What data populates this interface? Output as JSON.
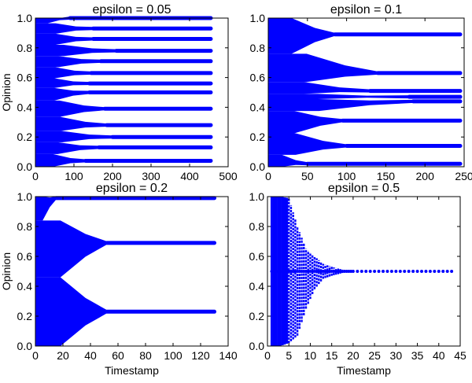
{
  "chart_data": [
    {
      "type": "scatter",
      "title": "epsilon = 0.05",
      "xlabel": "",
      "ylabel": "Opinion",
      "xlim": [
        0,
        500
      ],
      "ylim": [
        0,
        1
      ],
      "xticks": [
        "0",
        "100",
        "200",
        "300",
        "400",
        "500"
      ],
      "yticks": [
        "0.0",
        "0.2",
        "0.4",
        "0.6",
        "0.8",
        "1.0"
      ],
      "x_end": 455,
      "color": "#0000ff",
      "clusters": [
        {
          "opinion": 0.04,
          "converged_at": 130
        },
        {
          "opinion": 0.13,
          "converged_at": 165
        },
        {
          "opinion": 0.2,
          "converged_at": 200
        },
        {
          "opinion": 0.28,
          "converged_at": 185
        },
        {
          "opinion": 0.39,
          "converged_at": 180
        },
        {
          "opinion": 0.5,
          "converged_at": 140
        },
        {
          "opinion": 0.56,
          "converged_at": 140
        },
        {
          "opinion": 0.63,
          "converged_at": 145
        },
        {
          "opinion": 0.71,
          "converged_at": 170
        },
        {
          "opinion": 0.78,
          "converged_at": 210
        },
        {
          "opinion": 0.86,
          "converged_at": 150
        },
        {
          "opinion": 0.93,
          "converged_at": 150
        },
        {
          "opinion": 1.0,
          "converged_at": 90
        }
      ]
    },
    {
      "type": "scatter",
      "title": "epsilon = 0.1",
      "xlabel": "",
      "ylabel": "",
      "xlim": [
        0,
        250
      ],
      "ylim": [
        0,
        1
      ],
      "xticks": [
        "0",
        "50",
        "100",
        "150",
        "200",
        "250"
      ],
      "yticks": [
        "0.0",
        "0.2",
        "0.4",
        "0.6",
        "0.8",
        "1.0"
      ],
      "x_end": 245,
      "color": "#0000ff",
      "clusters": [
        {
          "opinion": 0.02,
          "converged_at": 50
        },
        {
          "opinion": 0.14,
          "converged_at": 100
        },
        {
          "opinion": 0.31,
          "converged_at": 95
        },
        {
          "opinion": 0.44,
          "converged_at": 185
        },
        {
          "opinion": 0.47,
          "converged_at": 180
        },
        {
          "opinion": 0.51,
          "converged_at": 130
        },
        {
          "opinion": 0.63,
          "converged_at": 140
        },
        {
          "opinion": 0.89,
          "converged_at": 85
        }
      ]
    },
    {
      "type": "scatter",
      "title": "epsilon = 0.2",
      "xlabel": "Timestamp",
      "ylabel": "Opinion",
      "xlim": [
        0,
        140
      ],
      "ylim": [
        0,
        1
      ],
      "xticks": [
        "0",
        "20",
        "40",
        "60",
        "80",
        "100",
        "120",
        "140"
      ],
      "yticks": [
        "0.0",
        "0.2",
        "0.4",
        "0.6",
        "0.8",
        "1.0"
      ],
      "x_end": 130,
      "color": "#0000ff",
      "clusters": [
        {
          "opinion": 0.23,
          "converged_at": 52
        },
        {
          "opinion": 0.69,
          "converged_at": 52
        },
        {
          "opinion": 0.99,
          "converged_at": 15
        }
      ]
    },
    {
      "type": "scatter",
      "title": "epsilon = 0.5",
      "xlabel": "Timestamp",
      "ylabel": "",
      "xlim": [
        0,
        45
      ],
      "ylim": [
        0,
        1
      ],
      "xticks": [
        "0",
        "5",
        "10",
        "15",
        "20",
        "25",
        "30",
        "35",
        "40",
        "45"
      ],
      "yticks": [
        "0.0",
        "0.2",
        "0.4",
        "0.6",
        "0.8",
        "1.0"
      ],
      "x_end": 43,
      "color": "#0000ff",
      "clusters": [
        {
          "opinion": 0.5,
          "converged_at": 19
        }
      ],
      "spread": [
        {
          "timestamp": 1,
          "min": 0.0,
          "max": 1.0
        },
        {
          "timestamp": 3,
          "min": 0.0,
          "max": 1.0
        },
        {
          "timestamp": 5,
          "min": 0.02,
          "max": 0.99
        },
        {
          "timestamp": 7,
          "min": 0.07,
          "max": 0.8
        },
        {
          "timestamp": 9,
          "min": 0.25,
          "max": 0.65
        },
        {
          "timestamp": 11,
          "min": 0.38,
          "max": 0.6
        },
        {
          "timestamp": 13,
          "min": 0.45,
          "max": 0.55
        },
        {
          "timestamp": 15,
          "min": 0.47,
          "max": 0.53
        },
        {
          "timestamp": 19,
          "min": 0.5,
          "max": 0.5
        }
      ]
    }
  ]
}
